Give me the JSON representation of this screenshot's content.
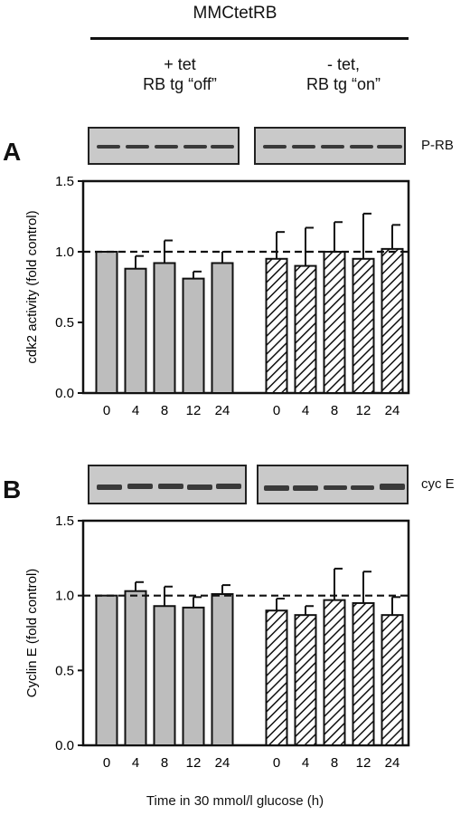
{
  "header": {
    "title": "MMCtetRB",
    "conditions": [
      {
        "line1": "+ tet",
        "line2": "RB tg “off”"
      },
      {
        "line1": "- tet,",
        "line2": "RB tg “on”"
      }
    ]
  },
  "x_axis_label": "Time in 30 mmol/l glucose (h)",
  "chart_data": [
    {
      "type": "bar",
      "panel_label": "A",
      "blot_label": "P-RB",
      "ylabel": "cdk2 activity (fold control)",
      "ylim": [
        0,
        1.5
      ],
      "yticks": [
        "0.0",
        "0.5",
        "1.0",
        "1.5"
      ],
      "reference_line": 1.0,
      "categories": [
        "0",
        "4",
        "8",
        "12",
        "24"
      ],
      "series": [
        {
          "values": [
            1.0,
            0.88,
            0.92,
            0.81,
            0.92
          ],
          "errors": [
            0,
            0.09,
            0.16,
            0.05,
            0.08
          ],
          "fill": "#bdbdbd",
          "hatched": false
        },
        {
          "values": [
            0.95,
            0.9,
            1.0,
            0.95,
            1.02
          ],
          "errors": [
            0.19,
            0.27,
            0.21,
            0.32,
            0.17
          ],
          "fill": "#ffffff",
          "hatched": true
        }
      ]
    },
    {
      "type": "bar",
      "panel_label": "B",
      "blot_label": "cyc E",
      "ylabel": "Cyclin E (fold control)",
      "ylim": [
        0,
        1.5
      ],
      "yticks": [
        "0.0",
        "0.5",
        "1.0",
        "1.5"
      ],
      "reference_line": 1.0,
      "categories": [
        "0",
        "4",
        "8",
        "12",
        "24"
      ],
      "series": [
        {
          "values": [
            1.0,
            1.03,
            0.93,
            0.92,
            1.01
          ],
          "errors": [
            0,
            0.06,
            0.13,
            0.07,
            0.06
          ],
          "fill": "#bdbdbd",
          "hatched": false
        },
        {
          "values": [
            0.9,
            0.87,
            0.97,
            0.95,
            0.87
          ],
          "errors": [
            0.08,
            0.06,
            0.21,
            0.21,
            0.12
          ],
          "fill": "#ffffff",
          "hatched": true
        }
      ]
    }
  ]
}
